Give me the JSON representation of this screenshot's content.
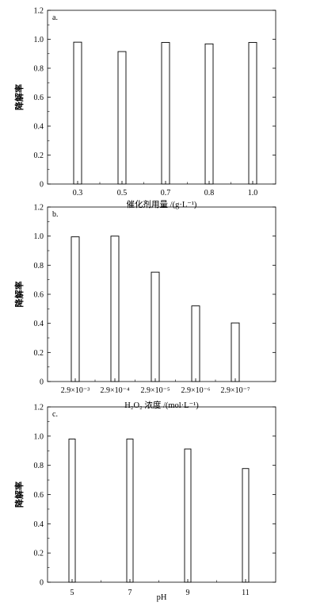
{
  "chart_data": [
    {
      "type": "bar",
      "panel_label": "a.",
      "xlabel": "催化剂用量 /(g·L⁻¹)",
      "ylabel": "降解率",
      "ylim": [
        0,
        1.2
      ],
      "yticks": [
        "0",
        "0.2",
        "0.4",
        "0.6",
        "0.8",
        "1.0",
        "1.2"
      ],
      "categories": [
        "0.3",
        "0.5",
        "0.7",
        "0.8",
        "1.0"
      ],
      "values": [
        0.98,
        0.915,
        0.978,
        0.968,
        0.978
      ]
    },
    {
      "type": "bar",
      "panel_label": "b.",
      "xlabel": "H₂O₂ 浓度 /(mol·L⁻¹)",
      "ylabel": "降解率",
      "ylim": [
        0,
        1.2
      ],
      "yticks": [
        "0",
        "0.2",
        "0.4",
        "0.6",
        "0.8",
        "1.0",
        "1.2"
      ],
      "categories": [
        "2.9×10⁻³",
        "2.9×10⁻⁴",
        "2.9×10⁻⁵",
        "2.9×10⁻⁶",
        "2.9×10⁻⁷"
      ],
      "values": [
        0.995,
        1.0,
        0.752,
        0.52,
        0.403
      ]
    },
    {
      "type": "bar",
      "panel_label": "c.",
      "xlabel": "pH",
      "ylabel": "降解率",
      "ylim": [
        0,
        1.2
      ],
      "yticks": [
        "0",
        "0.2",
        "0.4",
        "0.6",
        "0.8",
        "1.0",
        "1.2"
      ],
      "categories": [
        "5",
        "7",
        "9",
        "11"
      ],
      "values": [
        0.98,
        0.98,
        0.912,
        0.778
      ]
    }
  ]
}
